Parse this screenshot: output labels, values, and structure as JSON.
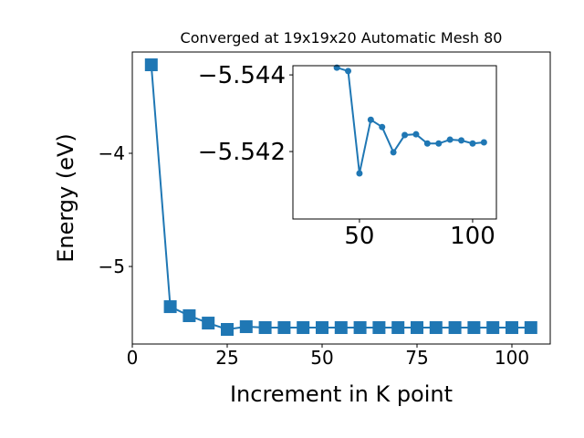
{
  "chart_data": [
    {
      "type": "line",
      "title": "Converged at 19x19x20 Automatic Mesh 80",
      "x_label": "Increment in K point",
      "y_label": "Energy (eV)",
      "x": [
        5,
        10,
        15,
        20,
        25,
        30,
        35,
        40,
        45,
        50,
        55,
        60,
        65,
        70,
        75,
        80,
        85,
        90,
        95,
        100,
        105
      ],
      "values": [
        -3.218,
        -5.355,
        -5.435,
        -5.5,
        -5.556,
        -5.532,
        -5.54,
        -5.54,
        -5.54,
        -5.54,
        -5.54,
        -5.54,
        -5.54,
        -5.54,
        -5.54,
        -5.54,
        -5.54,
        -5.54,
        -5.54,
        -5.54,
        -5.54
      ],
      "color": "#1f77b4",
      "marker": "square",
      "xlim": [
        0,
        110.1
      ],
      "xticks": [
        0,
        25,
        50,
        75,
        100
      ],
      "ylim": [
        -5.685,
        -3.105
      ],
      "yticks": [
        {
          "value": -5,
          "label": "−5"
        },
        {
          "value": -4,
          "label": "−4"
        }
      ]
    },
    {
      "type": "line",
      "x": [
        40,
        45,
        50,
        55,
        60,
        65,
        70,
        75,
        80,
        85,
        90,
        95,
        100,
        105
      ],
      "values": [
        -5.54419,
        -5.5441,
        -5.54143,
        -5.54283,
        -5.54264,
        -5.54198,
        -5.54243,
        -5.54245,
        -5.54221,
        -5.54221,
        -5.54231,
        -5.54229,
        -5.54221,
        -5.54224
      ],
      "color": "#1f77b4",
      "marker": "circle",
      "xlim": [
        20.6,
        110.5
      ],
      "xticks": [
        50,
        100
      ],
      "ylim": [
        -5.54024,
        -5.54424
      ],
      "yticks": [
        {
          "value": -5.544,
          "label": "−5.544"
        },
        {
          "value": -5.542,
          "label": "−5.542"
        }
      ]
    }
  ]
}
